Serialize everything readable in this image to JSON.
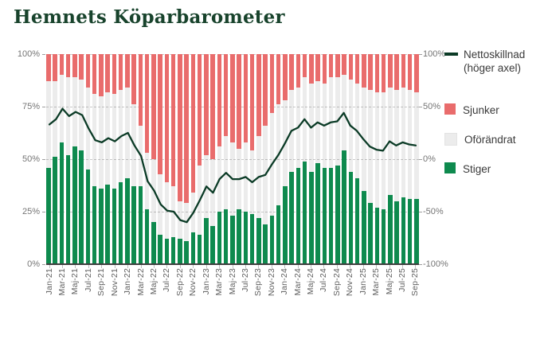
{
  "title": "Hemnets Köparbarometer",
  "colors": {
    "title": "#18432c",
    "stiger": "#0e8a4e",
    "sjunker": "#e96c6c",
    "oforandrat": "#ececec",
    "line": "#0b3b26",
    "axis_text": "#757575",
    "grid": "#c9c9c9",
    "axis_line": "#3f3f3f"
  },
  "legend": {
    "items": [
      {
        "label": "Nettoskillnad (höger axel)",
        "type": "line",
        "series": "nettoskillnad"
      },
      {
        "label": "Sjunker",
        "type": "box",
        "series": "sjunker"
      },
      {
        "label": "Oförändrat",
        "type": "box",
        "series": "oforandrat"
      },
      {
        "label": "Stiger",
        "type": "box",
        "series": "stiger"
      }
    ]
  },
  "left_axis": {
    "ticks": [
      "100%",
      "75%",
      "50%",
      "25%",
      "0%"
    ],
    "range": [
      0,
      100
    ]
  },
  "right_axis": {
    "ticks": [
      "100%",
      "50%",
      "0%",
      "-50%",
      "-100%"
    ],
    "range": [
      -100,
      100
    ]
  },
  "chart_data": {
    "type": "stacked-bar+line",
    "title": "Hemnets Köparbarometer",
    "left_ylim": [
      0,
      100
    ],
    "right_ylim": [
      -100,
      100
    ],
    "x_tick_every": 2,
    "grid": "dashed-horizontal",
    "legend_position": "right",
    "categories": [
      "Jan-21",
      "Feb-21",
      "Mar-21",
      "Apr-21",
      "Maj-21",
      "Jun-21",
      "Jul-21",
      "Aug-21",
      "Sep-21",
      "Okt-21",
      "Nov-21",
      "Dec-21",
      "Jan-22",
      "Feb-22",
      "Mar-22",
      "Apr-22",
      "Maj-22",
      "Jun-22",
      "Jul-22",
      "Aug-22",
      "Sep-22",
      "Okt-22",
      "Nov-22",
      "Dec-22",
      "Jan-23",
      "Feb-23",
      "Mar-23",
      "Apr-23",
      "Maj-23",
      "Jun-23",
      "Jul-23",
      "Aug-23",
      "Sep-23",
      "Okt-23",
      "Nov-23",
      "Dec-23",
      "Jan-24",
      "Feb-24",
      "Mar-24",
      "Apr-24",
      "Maj-24",
      "Jun-24",
      "Jul-24",
      "Aug-24",
      "Sep-24",
      "Okt-24",
      "Nov-24",
      "Dec-24",
      "Jan-25",
      "Feb-25",
      "Mar-25",
      "Apr-25",
      "Maj-25",
      "Jun-25",
      "Jul-25",
      "Aug-25",
      "Sep-25"
    ],
    "series": [
      {
        "name": "Stiger",
        "type": "bar",
        "axis": "left",
        "values": [
          46,
          51,
          58,
          52,
          56,
          54,
          45,
          37,
          36,
          38,
          36,
          39,
          41,
          37,
          37,
          26,
          20,
          14,
          12,
          13,
          12,
          11,
          15,
          14,
          22,
          18,
          25,
          26,
          23,
          26,
          25,
          24,
          22,
          19,
          23,
          28,
          37,
          44,
          46,
          49,
          44,
          48,
          46,
          46,
          47,
          54,
          44,
          41,
          35,
          29,
          27,
          26,
          33,
          30,
          32,
          31,
          31
        ]
      },
      {
        "name": "Oförändrat",
        "type": "bar",
        "axis": "left",
        "values": [
          41,
          36,
          32,
          37,
          33,
          34,
          39,
          44,
          44,
          44,
          45,
          44,
          43,
          39,
          29,
          27,
          30,
          29,
          27,
          24,
          18,
          18,
          19,
          33,
          30,
          32,
          31,
          35,
          35,
          29,
          33,
          30,
          39,
          47,
          49,
          48,
          41,
          39,
          38,
          40,
          42,
          39,
          40,
          43,
          42,
          36,
          44,
          45,
          49,
          54,
          55,
          56,
          51,
          53,
          52,
          52,
          51
        ]
      },
      {
        "name": "Sjunker",
        "type": "bar",
        "axis": "left",
        "values": [
          13,
          13,
          10,
          11,
          11,
          12,
          16,
          19,
          20,
          18,
          19,
          17,
          16,
          24,
          34,
          47,
          50,
          57,
          61,
          63,
          70,
          71,
          66,
          53,
          48,
          50,
          44,
          39,
          42,
          45,
          42,
          46,
          39,
          34,
          28,
          24,
          22,
          17,
          16,
          11,
          14,
          13,
          14,
          11,
          11,
          10,
          12,
          14,
          16,
          17,
          18,
          18,
          16,
          17,
          16,
          17,
          18
        ]
      },
      {
        "name": "Nettoskillnad (höger axel)",
        "type": "line",
        "axis": "right",
        "values": [
          33,
          38,
          48,
          41,
          45,
          42,
          29,
          18,
          16,
          20,
          17,
          22,
          25,
          13,
          3,
          -21,
          -30,
          -43,
          -49,
          -50,
          -58,
          -60,
          -51,
          -39,
          -26,
          -32,
          -19,
          -13,
          -19,
          -19,
          -17,
          -22,
          -17,
          -15,
          -5,
          4,
          15,
          27,
          30,
          38,
          30,
          35,
          32,
          35,
          36,
          44,
          32,
          27,
          19,
          12,
          9,
          8,
          17,
          13,
          16,
          14,
          13
        ]
      }
    ]
  }
}
